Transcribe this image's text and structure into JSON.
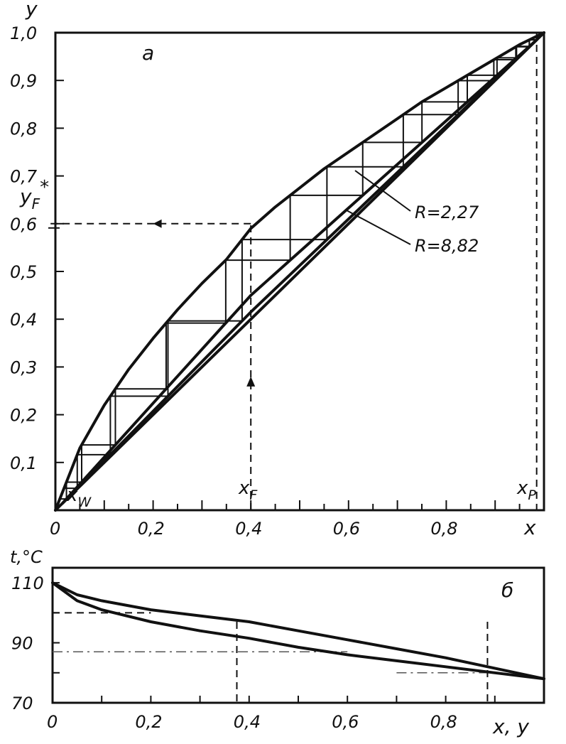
{
  "chart_data": [
    {
      "panel": "a",
      "type": "line",
      "panel_label": "a",
      "xlabel": "x",
      "ylabel": "y",
      "xlim": [
        0,
        1.0
      ],
      "ylim": [
        0,
        1.0
      ],
      "x_tick_labels": [
        "0",
        "0,2",
        "0,4",
        "0,6",
        "0,8"
      ],
      "y_tick_labels": [
        "0,1",
        "0,2",
        "0,3",
        "0,4",
        "0,5",
        "0,6",
        "0,7",
        "0,8",
        "0,9",
        "1,0"
      ],
      "equilibrium_curve": {
        "x": [
          0,
          0.05,
          0.1,
          0.15,
          0.2,
          0.25,
          0.3,
          0.35,
          0.4,
          0.45,
          0.5,
          0.55,
          0.6,
          0.65,
          0.7,
          0.75,
          0.8,
          0.85,
          0.9,
          0.95,
          1.0
        ],
        "y": [
          0,
          0.13,
          0.22,
          0.295,
          0.36,
          0.42,
          0.475,
          0.525,
          0.59,
          0.635,
          0.675,
          0.715,
          0.75,
          0.785,
          0.82,
          0.855,
          0.885,
          0.915,
          0.945,
          0.975,
          1.0
        ]
      },
      "diagonal": {
        "x": [
          0,
          1.0
        ],
        "y": [
          0,
          1.0
        ]
      },
      "operating_lines": [
        {
          "label": "R=2,27",
          "points": [
            [
              0.015,
              0.015
            ],
            [
              0.4,
              0.45
            ],
            [
              0.985,
              0.985
            ]
          ]
        },
        {
          "label": "R=8,82",
          "points": [
            [
              0.015,
              0.015
            ],
            [
              0.4,
              0.415
            ],
            [
              0.985,
              0.985
            ]
          ]
        }
      ],
      "markers": {
        "xW": {
          "text": "xW",
          "x": 0.015
        },
        "xF": {
          "text": "xF",
          "x": 0.4
        },
        "xP": {
          "text": "xP",
          "x": 0.985
        },
        "yF_star": {
          "text": "yF*",
          "y": 0.6
        }
      }
    },
    {
      "panel": "b",
      "type": "line",
      "panel_label": "б",
      "xlabel": "x, y",
      "ylabel": "t,°C",
      "xlim": [
        0,
        1.0
      ],
      "ylim": [
        70,
        115
      ],
      "x_tick_labels": [
        "0",
        "0,2",
        "0,4",
        "0,6",
        "0,8"
      ],
      "y_tick_labels": [
        "70",
        "90",
        "110"
      ],
      "series": [
        {
          "x": [
            0,
            0.05,
            0.1,
            0.2,
            0.3,
            0.4,
            0.5,
            0.6,
            0.7,
            0.8,
            0.9,
            1.0
          ],
          "y": [
            110,
            106,
            104,
            101,
            99,
            97,
            94,
            91,
            88,
            85,
            81.5,
            78
          ]
        },
        {
          "x": [
            0,
            0.05,
            0.1,
            0.2,
            0.3,
            0.4,
            0.5,
            0.6,
            0.7,
            0.8,
            0.9,
            1.0
          ],
          "y": [
            110,
            104,
            101,
            97,
            94,
            91.5,
            88.5,
            86,
            84,
            82,
            80,
            78
          ]
        }
      ],
      "guides": {
        "h_dashed_t": 100,
        "h_dashdot_t": 87,
        "h_dashdot2_t": 80,
        "v_dashed_x": [
          0.375,
          0.885
        ]
      }
    }
  ]
}
